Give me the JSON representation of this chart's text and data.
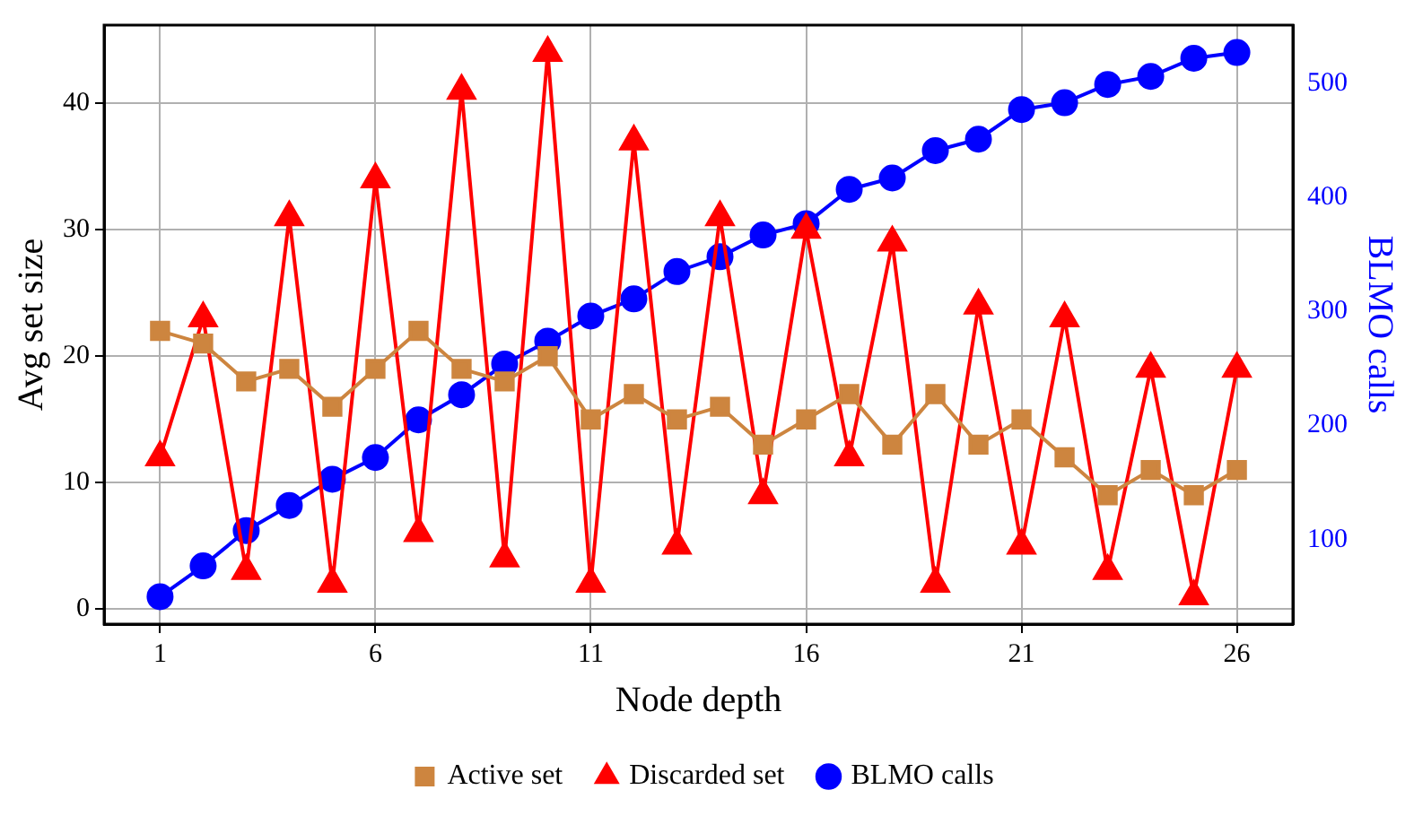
{
  "chart_data": {
    "type": "line",
    "xlabel": "Node depth",
    "ylabel": "Avg set size",
    "y2label": "BLMO calls",
    "x": [
      1,
      2,
      3,
      4,
      5,
      6,
      7,
      8,
      9,
      10,
      11,
      12,
      13,
      14,
      15,
      16,
      17,
      18,
      19,
      20,
      21,
      22,
      23,
      24,
      25,
      26
    ],
    "xlim": [
      -0.3,
      27.3
    ],
    "xticks": [
      1,
      6,
      11,
      16,
      21,
      26
    ],
    "ylim": [
      -1.2,
      46.2
    ],
    "yticks": [
      0,
      10,
      20,
      30,
      40
    ],
    "y2lim": [
      26,
      551
    ],
    "y2ticks": [
      100,
      200,
      300,
      400,
      500
    ],
    "grid": true,
    "legend": "bottom",
    "line_style": "solid",
    "series": [
      {
        "name": "Active set",
        "color": "#cd853f",
        "marker": "square",
        "values": [
          22,
          21,
          18,
          19,
          16,
          19,
          22,
          19,
          18,
          20,
          15,
          17,
          15,
          16,
          13,
          15,
          17,
          13,
          17,
          13,
          15,
          12,
          9,
          11,
          9,
          11
        ]
      },
      {
        "name": "Discarded set",
        "color": "#ff0000",
        "marker": "triangle",
        "values": [
          12,
          23,
          3,
          31,
          2,
          34,
          6,
          41,
          4,
          44,
          2,
          37,
          5,
          31,
          9,
          30,
          12,
          29,
          2,
          24,
          5,
          23,
          3,
          19,
          1,
          19
        ]
      },
      {
        "name": "BLMO calls",
        "color": "#0000ff",
        "marker": "circle",
        "axis": "y2",
        "values": [
          50,
          77,
          108,
          130,
          153,
          172,
          205,
          227,
          254,
          274,
          296,
          311,
          335,
          348,
          367,
          377,
          407,
          417,
          441,
          451,
          477,
          483,
          499,
          506,
          522,
          527
        ]
      }
    ]
  }
}
